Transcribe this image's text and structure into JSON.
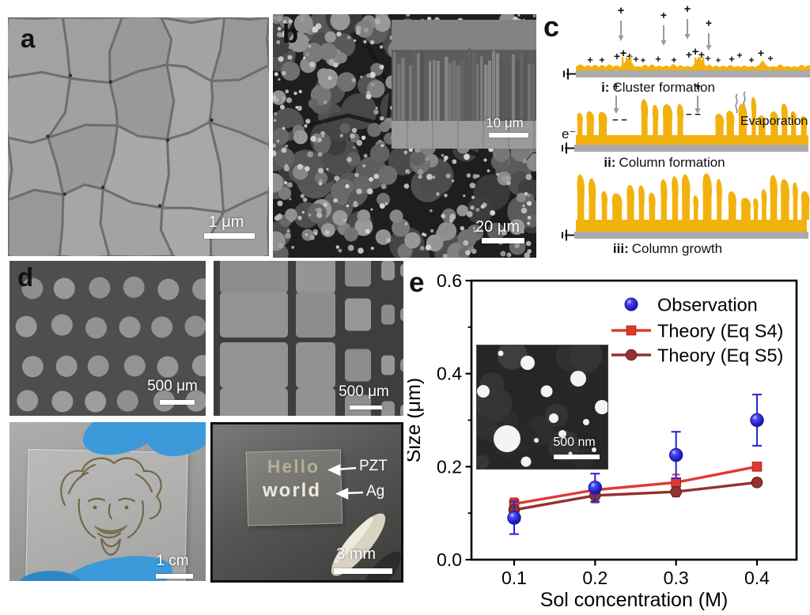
{
  "figure": {
    "background": "#ffffff",
    "panels": {
      "a": {
        "label": "a",
        "scale_bar": "1 μm"
      },
      "b": {
        "label": "b",
        "scale_bar": "20 μm",
        "inset": {
          "scale_bar": "10 μm"
        }
      },
      "c": {
        "label": "c",
        "stages": [
          {
            "prefix": "i:",
            "title": "Cluster formation"
          },
          {
            "prefix": "ii:",
            "title": "Column formation"
          },
          {
            "prefix": "iii:",
            "title": "Column growth"
          }
        ],
        "evaporation_label": "Evaporation",
        "electron_label": "e⁻",
        "plus_symbol": "+",
        "minus_symbol": "− −",
        "film_color": "#f2b20d",
        "substrate_color": "#ababab",
        "arrow_color": "#9a9a9a"
      },
      "d": {
        "label": "d",
        "dots": {
          "scale_bar": "500 μm"
        },
        "squares": {
          "scale_bar": "500 μm"
        },
        "einstein": {
          "scale_bar": "1 cm",
          "glove_color": "#3c99da"
        },
        "hello": {
          "line1": "Hello",
          "line2": "world",
          "annotation_top": "PZT",
          "annotation_bottom": "Ag",
          "scale_bar": "3 mm"
        }
      },
      "e": {
        "label": "e"
      }
    }
  },
  "chart_data": {
    "type": "line",
    "title": "",
    "xlabel": "Sol concentration (M)",
    "ylabel": "Size (μm)",
    "xlim": [
      0.05,
      0.45
    ],
    "ylim": [
      0.0,
      0.6
    ],
    "grid": false,
    "legend_position": "upper right",
    "x": [
      0.1,
      0.2,
      0.3,
      0.4
    ],
    "xticks": [
      0.1,
      0.2,
      0.3,
      0.4
    ],
    "xtick_labels": [
      "0.1",
      "0.2",
      "0.3",
      "0.4"
    ],
    "yticks": [
      0.0,
      0.2,
      0.4,
      0.6
    ],
    "ytick_labels": [
      "0.0",
      "0.2",
      "0.4",
      "0.6"
    ],
    "yminor": [
      0.1,
      0.3,
      0.5
    ],
    "series": [
      {
        "name": "Observation",
        "marker": "sphere",
        "draw_line": false,
        "color": "#1f1fd8",
        "values": [
          0.09,
          0.155,
          0.225,
          0.3
        ],
        "yerr": [
          0.035,
          0.03,
          0.05,
          0.055
        ]
      },
      {
        "name": "Theory (Eq S4)",
        "marker": "square",
        "draw_line": true,
        "color": "#e03a30",
        "values": [
          0.12,
          0.15,
          0.166,
          0.2
        ],
        "yerr": [
          0.012,
          0.008,
          0.017,
          0.008
        ]
      },
      {
        "name": "Theory (Eq S5)",
        "marker": "circle",
        "draw_line": true,
        "color": "#93322e",
        "values": [
          0.107,
          0.138,
          0.146,
          0.166
        ],
        "yerr": [
          0.008,
          0.015,
          0.01,
          0.008
        ]
      }
    ],
    "inset": {
      "scale_bar": "500 nm"
    }
  }
}
